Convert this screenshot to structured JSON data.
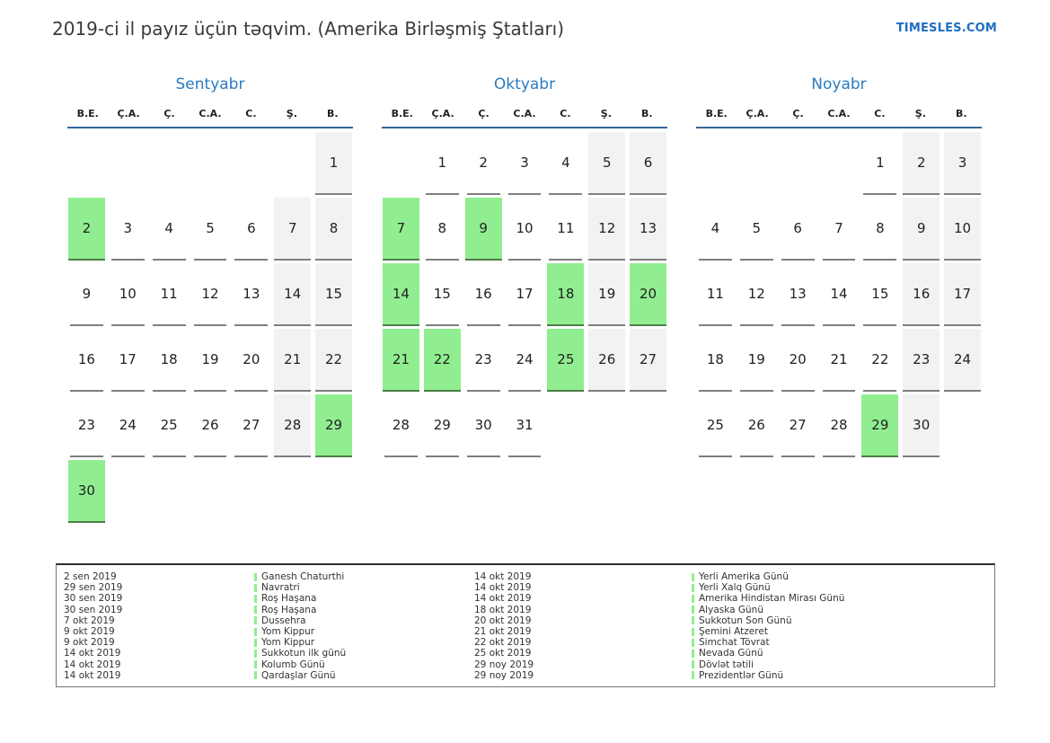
{
  "page": {
    "title": "2019-ci il payız üçün təqvim. (Amerika Birləşmiş Ştatları)",
    "site": "TIMESLES.COM"
  },
  "colors": {
    "holiday_green": "#90ee90",
    "weekend_gray": "#f2f2f2",
    "month_title_blue": "#2b7bc0",
    "site_link_blue": "#1f6fc1",
    "header_line_blue": "#35679a"
  },
  "weekdays": [
    "B.E.",
    "Ç.A.",
    "Ç.",
    "C.A.",
    "C.",
    "Ş.",
    "B."
  ],
  "months": [
    {
      "name": "Sentyabr",
      "weeks": [
        [
          null,
          null,
          null,
          null,
          null,
          null,
          {
            "d": 1,
            "type": "weekend"
          }
        ],
        [
          {
            "d": 2,
            "type": "holiday"
          },
          {
            "d": 3,
            "type": "normal"
          },
          {
            "d": 4,
            "type": "normal"
          },
          {
            "d": 5,
            "type": "normal"
          },
          {
            "d": 6,
            "type": "normal"
          },
          {
            "d": 7,
            "type": "weekend"
          },
          {
            "d": 8,
            "type": "weekend"
          }
        ],
        [
          {
            "d": 9,
            "type": "normal"
          },
          {
            "d": 10,
            "type": "normal"
          },
          {
            "d": 11,
            "type": "normal"
          },
          {
            "d": 12,
            "type": "normal"
          },
          {
            "d": 13,
            "type": "normal"
          },
          {
            "d": 14,
            "type": "weekend"
          },
          {
            "d": 15,
            "type": "weekend"
          }
        ],
        [
          {
            "d": 16,
            "type": "normal"
          },
          {
            "d": 17,
            "type": "normal"
          },
          {
            "d": 18,
            "type": "normal"
          },
          {
            "d": 19,
            "type": "normal"
          },
          {
            "d": 20,
            "type": "normal"
          },
          {
            "d": 21,
            "type": "weekend"
          },
          {
            "d": 22,
            "type": "weekend"
          }
        ],
        [
          {
            "d": 23,
            "type": "normal"
          },
          {
            "d": 24,
            "type": "normal"
          },
          {
            "d": 25,
            "type": "normal"
          },
          {
            "d": 26,
            "type": "normal"
          },
          {
            "d": 27,
            "type": "normal"
          },
          {
            "d": 28,
            "type": "weekend"
          },
          {
            "d": 29,
            "type": "holiday"
          }
        ],
        [
          {
            "d": 30,
            "type": "holiday"
          },
          null,
          null,
          null,
          null,
          null,
          null
        ]
      ]
    },
    {
      "name": "Oktyabr",
      "weeks": [
        [
          null,
          {
            "d": 1,
            "type": "normal"
          },
          {
            "d": 2,
            "type": "normal"
          },
          {
            "d": 3,
            "type": "normal"
          },
          {
            "d": 4,
            "type": "normal"
          },
          {
            "d": 5,
            "type": "weekend"
          },
          {
            "d": 6,
            "type": "weekend"
          }
        ],
        [
          {
            "d": 7,
            "type": "holiday"
          },
          {
            "d": 8,
            "type": "normal"
          },
          {
            "d": 9,
            "type": "holiday"
          },
          {
            "d": 10,
            "type": "normal"
          },
          {
            "d": 11,
            "type": "normal"
          },
          {
            "d": 12,
            "type": "weekend"
          },
          {
            "d": 13,
            "type": "weekend"
          }
        ],
        [
          {
            "d": 14,
            "type": "holiday"
          },
          {
            "d": 15,
            "type": "normal"
          },
          {
            "d": 16,
            "type": "normal"
          },
          {
            "d": 17,
            "type": "normal"
          },
          {
            "d": 18,
            "type": "holiday"
          },
          {
            "d": 19,
            "type": "weekend"
          },
          {
            "d": 20,
            "type": "holiday"
          }
        ],
        [
          {
            "d": 21,
            "type": "holiday"
          },
          {
            "d": 22,
            "type": "holiday"
          },
          {
            "d": 23,
            "type": "normal"
          },
          {
            "d": 24,
            "type": "normal"
          },
          {
            "d": 25,
            "type": "holiday"
          },
          {
            "d": 26,
            "type": "weekend"
          },
          {
            "d": 27,
            "type": "weekend"
          }
        ],
        [
          {
            "d": 28,
            "type": "normal"
          },
          {
            "d": 29,
            "type": "normal"
          },
          {
            "d": 30,
            "type": "normal"
          },
          {
            "d": 31,
            "type": "normal"
          },
          null,
          null,
          null
        ]
      ]
    },
    {
      "name": "Noyabr",
      "weeks": [
        [
          null,
          null,
          null,
          null,
          {
            "d": 1,
            "type": "normal"
          },
          {
            "d": 2,
            "type": "weekend"
          },
          {
            "d": 3,
            "type": "weekend"
          }
        ],
        [
          {
            "d": 4,
            "type": "normal"
          },
          {
            "d": 5,
            "type": "normal"
          },
          {
            "d": 6,
            "type": "normal"
          },
          {
            "d": 7,
            "type": "normal"
          },
          {
            "d": 8,
            "type": "normal"
          },
          {
            "d": 9,
            "type": "weekend"
          },
          {
            "d": 10,
            "type": "weekend"
          }
        ],
        [
          {
            "d": 11,
            "type": "normal"
          },
          {
            "d": 12,
            "type": "normal"
          },
          {
            "d": 13,
            "type": "normal"
          },
          {
            "d": 14,
            "type": "normal"
          },
          {
            "d": 15,
            "type": "normal"
          },
          {
            "d": 16,
            "type": "weekend"
          },
          {
            "d": 17,
            "type": "weekend"
          }
        ],
        [
          {
            "d": 18,
            "type": "normal"
          },
          {
            "d": 19,
            "type": "normal"
          },
          {
            "d": 20,
            "type": "normal"
          },
          {
            "d": 21,
            "type": "normal"
          },
          {
            "d": 22,
            "type": "normal"
          },
          {
            "d": 23,
            "type": "weekend"
          },
          {
            "d": 24,
            "type": "weekend"
          }
        ],
        [
          {
            "d": 25,
            "type": "normal"
          },
          {
            "d": 26,
            "type": "normal"
          },
          {
            "d": 27,
            "type": "normal"
          },
          {
            "d": 28,
            "type": "normal"
          },
          {
            "d": 29,
            "type": "holiday"
          },
          {
            "d": 30,
            "type": "weekend"
          },
          null
        ]
      ]
    }
  ],
  "legend": {
    "groups": [
      {
        "entries": [
          {
            "date": "2 sen 2019",
            "name": "Ganesh Chaturthi"
          },
          {
            "date": "29 sen 2019",
            "name": "Navratri"
          },
          {
            "date": "30 sen 2019",
            "name": "Roş Haşana"
          },
          {
            "date": "30 sen 2019",
            "name": "Roş Haşana"
          },
          {
            "date": "7 okt 2019",
            "name": "Dussehra"
          },
          {
            "date": "9 okt 2019",
            "name": "Yom Kippur"
          },
          {
            "date": "9 okt 2019",
            "name": "Yom Kippur"
          },
          {
            "date": "14 okt 2019",
            "name": "Sukkotun ilk günü"
          },
          {
            "date": "14 okt 2019",
            "name": "Kolumb Günü"
          },
          {
            "date": "14 okt 2019",
            "name": "Qardaşlar Günü"
          }
        ]
      },
      {
        "entries": [
          {
            "date": "14 okt 2019",
            "name": "Yerli Amerika Günü"
          },
          {
            "date": "14 okt 2019",
            "name": "Yerli Xalq Günü"
          },
          {
            "date": "14 okt 2019",
            "name": "Amerika Hindistan Mirası Günü"
          },
          {
            "date": "18 okt 2019",
            "name": "Alyaska Günü"
          },
          {
            "date": "20 okt 2019",
            "name": "Sukkotun Son Günü"
          },
          {
            "date": "21 okt 2019",
            "name": "Şemini Atzeret"
          },
          {
            "date": "22 okt 2019",
            "name": "Simchat Tövrat"
          },
          {
            "date": "25 okt 2019",
            "name": "Nevada Günü"
          },
          {
            "date": "29 noy 2019",
            "name": "Dövlət tətili"
          },
          {
            "date": "29 noy 2019",
            "name": "Prezidentlər Günü"
          }
        ]
      }
    ]
  }
}
